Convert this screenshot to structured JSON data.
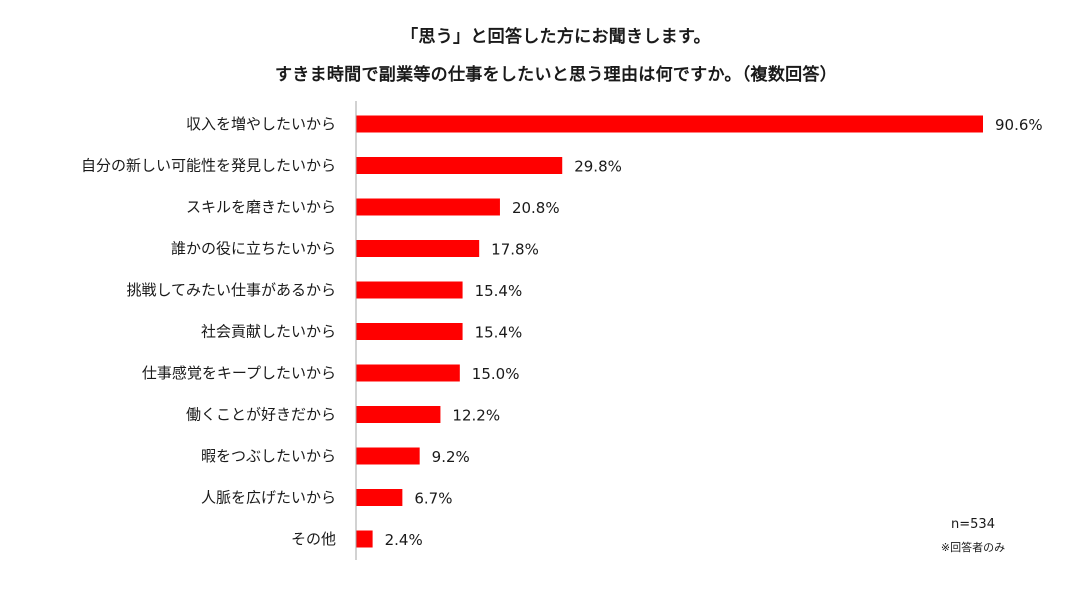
{
  "header": {
    "title_line1": "「思う」と回答した方にお聞きします。",
    "title_line2": "すきま時間で副業等の仕事をしたいと思う理由は何ですか。（複数回答）"
  },
  "notes": {
    "sample_size": "n=534",
    "respondents_only": "※回答者のみ"
  },
  "chart_data": {
    "type": "bar",
    "orientation": "horizontal",
    "categories": [
      "収入を増やしたいから",
      "自分の新しい可能性を発見したいから",
      "スキルを磨きたいから",
      "誰かの役に立ちたいから",
      "挑戦してみたい仕事があるから",
      "社会貢献したいから",
      "仕事感覚をキープしたいから",
      "働くことが好きだから",
      "暇をつぶしたいから",
      "人脈を広げたいから",
      "その他"
    ],
    "values": [
      90.6,
      29.8,
      20.8,
      17.8,
      15.4,
      15.4,
      15.0,
      12.2,
      9.2,
      6.7,
      2.4
    ],
    "value_labels": [
      "90.6%",
      "29.8%",
      "20.8%",
      "17.8%",
      "15.4%",
      "15.4%",
      "15.0%",
      "12.2%",
      "9.2%",
      "6.7%",
      "2.4%"
    ],
    "unit": "%",
    "xlim": [
      0,
      100
    ],
    "bar_color": "#ff0000",
    "grid": false,
    "legend": "none"
  }
}
